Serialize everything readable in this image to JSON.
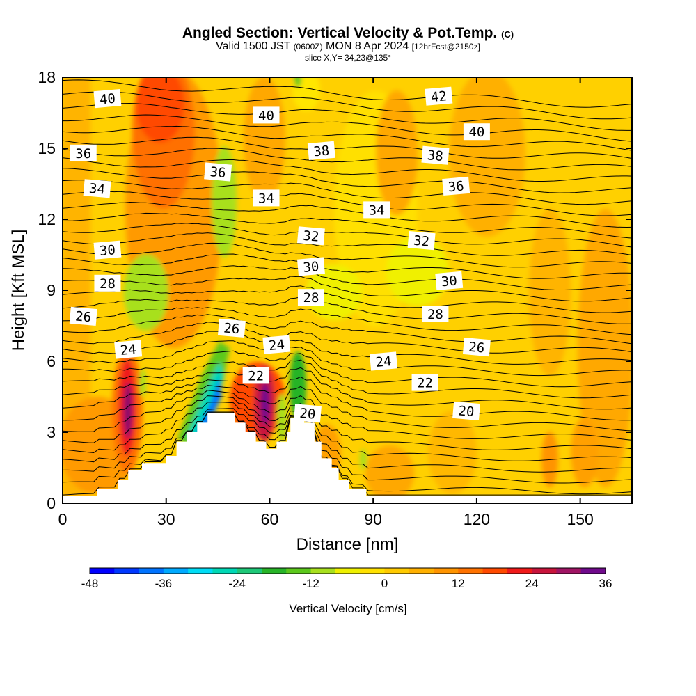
{
  "chart_data": {
    "type": "heatmap",
    "title": "Angled Section: Vertical Velocity & Pot.Temp.",
    "title_units": "(C)",
    "subtitle": {
      "valid_label": "Valid 1500 JST",
      "utc_time": "(0600Z)",
      "date": "MON 8 Apr 2024",
      "forecast": "[12hrFcst@2150z]"
    },
    "slice_label": "slice X,Y= 34,23@135°",
    "xlabel": "Distance [nm]",
    "ylabel": "Height [Kft MSL]",
    "xlim": [
      0,
      165
    ],
    "ylim": [
      0,
      18
    ],
    "x_ticks": [
      "0",
      "30",
      "60",
      "90",
      "120",
      "150"
    ],
    "x_tick_values": [
      0,
      30,
      60,
      90,
      120,
      150
    ],
    "y_ticks": [
      "0",
      "3",
      "6",
      "9",
      "12",
      "15",
      "18"
    ],
    "y_tick_values": [
      0,
      3,
      6,
      9,
      12,
      15,
      18
    ],
    "colorbar": {
      "label": "Vertical Velocity [cm/s]",
      "ticks": [
        "-48",
        "-36",
        "-24",
        "-12",
        "0",
        "12",
        "24",
        "36"
      ],
      "min": -48,
      "max": 36,
      "colors": [
        "#0000ff",
        "#0038ff",
        "#0073ff",
        "#00aaff",
        "#00dcf5",
        "#00d8b5",
        "#1ec878",
        "#28b428",
        "#5cc81c",
        "#a8e01e",
        "#eef000",
        "#ffe100",
        "#ffca00",
        "#ffb000",
        "#ff9400",
        "#ff7200",
        "#ff4a00",
        "#f01a1a",
        "#c8143c",
        "#a01464",
        "#700a8c"
      ]
    },
    "contour_series": {
      "name": "Potential Temperature (C)",
      "labels": [
        {
          "text": "40",
          "x": 13,
          "y": 17.1
        },
        {
          "text": "36",
          "x": 6,
          "y": 14.8
        },
        {
          "text": "34",
          "x": 10,
          "y": 13.3
        },
        {
          "text": "30",
          "x": 13,
          "y": 10.7
        },
        {
          "text": "28",
          "x": 13,
          "y": 9.3
        },
        {
          "text": "26",
          "x": 6,
          "y": 7.9
        },
        {
          "text": "24",
          "x": 19,
          "y": 6.5
        },
        {
          "text": "40",
          "x": 59,
          "y": 16.4
        },
        {
          "text": "36",
          "x": 45,
          "y": 14.0
        },
        {
          "text": "38",
          "x": 75,
          "y": 14.9
        },
        {
          "text": "34",
          "x": 59,
          "y": 12.9
        },
        {
          "text": "32",
          "x": 72,
          "y": 11.3
        },
        {
          "text": "30",
          "x": 72,
          "y": 10.0
        },
        {
          "text": "28",
          "x": 72,
          "y": 8.7
        },
        {
          "text": "26",
          "x": 49,
          "y": 7.4
        },
        {
          "text": "24",
          "x": 62,
          "y": 6.7
        },
        {
          "text": "22",
          "x": 56,
          "y": 5.4
        },
        {
          "text": "20",
          "x": 71,
          "y": 3.8
        },
        {
          "text": "42",
          "x": 109,
          "y": 17.2
        },
        {
          "text": "40",
          "x": 120,
          "y": 15.7
        },
        {
          "text": "38",
          "x": 108,
          "y": 14.7
        },
        {
          "text": "36",
          "x": 114,
          "y": 13.4
        },
        {
          "text": "34",
          "x": 91,
          "y": 12.4
        },
        {
          "text": "32",
          "x": 104,
          "y": 11.1
        },
        {
          "text": "30",
          "x": 112,
          "y": 9.4
        },
        {
          "text": "28",
          "x": 108,
          "y": 8.0
        },
        {
          "text": "26",
          "x": 120,
          "y": 6.6
        },
        {
          "text": "24",
          "x": 93,
          "y": 6.0
        },
        {
          "text": "22",
          "x": 105,
          "y": 5.1
        },
        {
          "text": "20",
          "x": 117,
          "y": 3.9
        }
      ]
    },
    "terrain": [
      [
        0,
        0.3
      ],
      [
        10,
        0.3
      ],
      [
        10,
        0.6
      ],
      [
        16,
        0.6
      ],
      [
        16,
        1.0
      ],
      [
        19,
        1.0
      ],
      [
        19,
        1.4
      ],
      [
        23,
        1.4
      ],
      [
        23,
        1.7
      ],
      [
        30,
        1.7
      ],
      [
        30,
        2.0
      ],
      [
        33,
        2.0
      ],
      [
        33,
        2.6
      ],
      [
        36,
        2.6
      ],
      [
        36,
        3.0
      ],
      [
        39,
        3.0
      ],
      [
        39,
        3.4
      ],
      [
        42,
        3.4
      ],
      [
        42,
        3.8
      ],
      [
        50,
        3.8
      ],
      [
        50,
        3.4
      ],
      [
        53,
        3.4
      ],
      [
        53,
        3.0
      ],
      [
        56,
        3.0
      ],
      [
        56,
        2.6
      ],
      [
        59,
        2.6
      ],
      [
        59,
        2.3
      ],
      [
        62,
        2.3
      ],
      [
        62,
        2.6
      ],
      [
        65,
        2.6
      ],
      [
        65,
        3.0
      ],
      [
        66,
        3.0
      ],
      [
        66,
        3.6
      ],
      [
        68,
        3.6
      ],
      [
        68,
        3.8
      ],
      [
        70,
        3.8
      ],
      [
        70,
        3.4
      ],
      [
        73,
        3.4
      ],
      [
        73,
        2.6
      ],
      [
        75,
        2.6
      ],
      [
        75,
        1.9
      ],
      [
        78,
        1.9
      ],
      [
        78,
        1.5
      ],
      [
        80,
        1.5
      ],
      [
        80,
        1.0
      ],
      [
        83,
        1.0
      ],
      [
        83,
        0.6
      ],
      [
        88,
        0.6
      ],
      [
        88,
        0.3
      ],
      [
        165,
        0.3
      ]
    ]
  }
}
